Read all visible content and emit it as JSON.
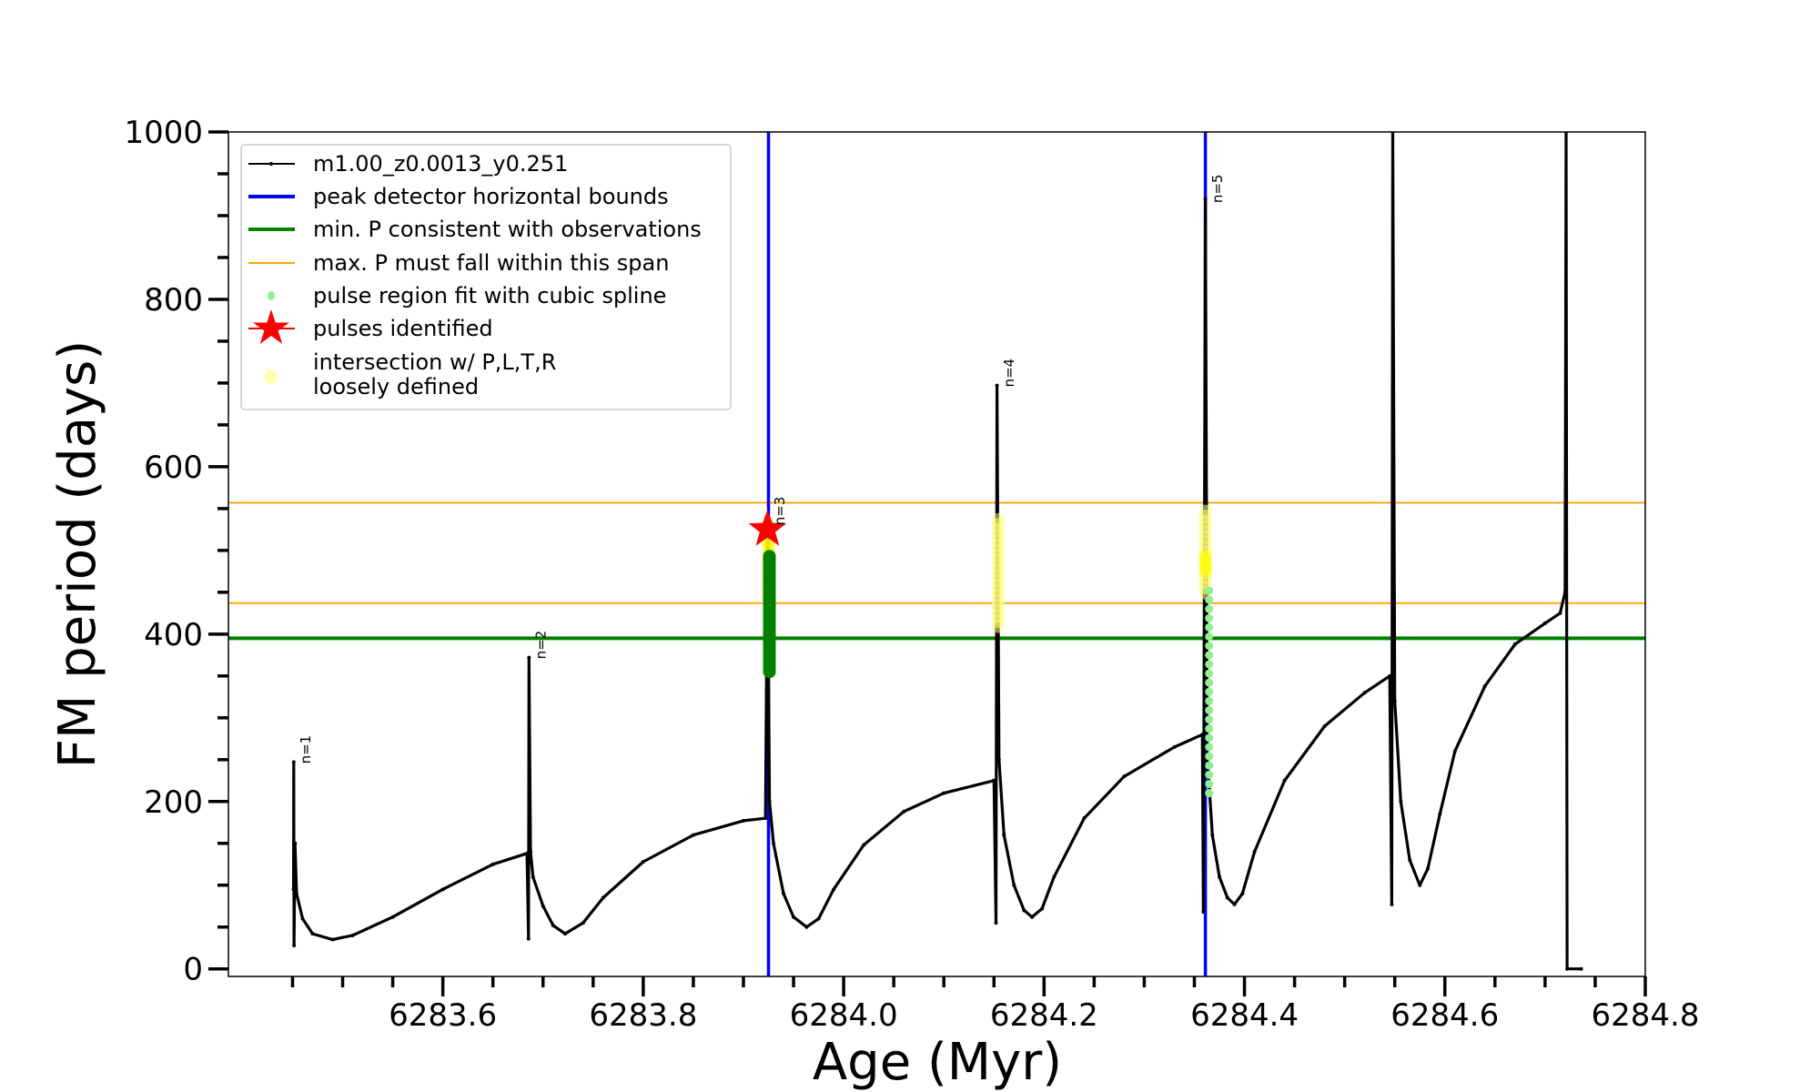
{
  "chart_data": {
    "type": "line",
    "title": "",
    "xlabel": "Age (Myr)",
    "ylabel": "FM period (days)",
    "xlim": [
      6283.386,
      6284.8
    ],
    "ylim": [
      -9,
      1000
    ],
    "xticks": [
      6283.6,
      6283.8,
      6284.0,
      6284.2,
      6284.4,
      6284.6,
      6284.8
    ],
    "xtick_labels": [
      "6283.6",
      "6283.8",
      "6284.0",
      "6284.2",
      "6284.4",
      "6284.6",
      "6284.8"
    ],
    "yticks": [
      0,
      200,
      400,
      600,
      800,
      1000
    ],
    "ytick_labels": [
      "0",
      "200",
      "400",
      "600",
      "800",
      "1000"
    ],
    "grid": false,
    "legend_position": "top-left",
    "legend": [
      {
        "label": "m1.00_z0.0013_y0.251",
        "kind": "line-marker",
        "color": "#000000"
      },
      {
        "label": "peak detector horizontal bounds",
        "kind": "line",
        "color": "#0000ff"
      },
      {
        "label": "min. P consistent with observations",
        "kind": "line",
        "color": "#008000"
      },
      {
        "label": "max. P must fall within this span",
        "kind": "thin-line",
        "color": "#ffa500"
      },
      {
        "label": "pulse region fit with cubic spline",
        "kind": "dot",
        "color": "#90ee90"
      },
      {
        "label": "pulses identified",
        "kind": "star",
        "color": "#ff0000"
      },
      {
        "label": "intersection w/ P,L,T,R",
        "label2": "loosely defined",
        "kind": "dot",
        "color": "#ffffb0"
      }
    ],
    "series": [
      {
        "name": "m1.00_z0.0013_y0.251",
        "color": "#000000",
        "points": [
          [
            6283.451,
            95
          ],
          [
            6283.4512,
            247
          ],
          [
            6283.4515,
            28
          ],
          [
            6283.4525,
            150
          ],
          [
            6283.454,
            90
          ],
          [
            6283.46,
            60
          ],
          [
            6283.47,
            42
          ],
          [
            6283.49,
            35
          ],
          [
            6283.51,
            40
          ],
          [
            6283.55,
            62
          ],
          [
            6283.6,
            95
          ],
          [
            6283.65,
            125
          ],
          [
            6283.684,
            138
          ],
          [
            6283.6855,
            36
          ],
          [
            6283.686,
            372
          ],
          [
            6283.6875,
            140
          ],
          [
            6283.69,
            110
          ],
          [
            6283.7,
            75
          ],
          [
            6283.71,
            52
          ],
          [
            6283.722,
            42
          ],
          [
            6283.74,
            55
          ],
          [
            6283.76,
            85
          ],
          [
            6283.8,
            128
          ],
          [
            6283.85,
            160
          ],
          [
            6283.9,
            177
          ],
          [
            6283.922,
            180
          ],
          [
            6283.924,
            520
          ],
          [
            6283.926,
            200
          ],
          [
            6283.93,
            150
          ],
          [
            6283.94,
            90
          ],
          [
            6283.95,
            62
          ],
          [
            6283.963,
            50
          ],
          [
            6283.975,
            60
          ],
          [
            6283.99,
            95
          ],
          [
            6284.02,
            148
          ],
          [
            6284.06,
            188
          ],
          [
            6284.1,
            210
          ],
          [
            6284.15,
            225
          ],
          [
            6284.152,
            55
          ],
          [
            6284.153,
            697
          ],
          [
            6284.155,
            250
          ],
          [
            6284.16,
            160
          ],
          [
            6284.17,
            100
          ],
          [
            6284.18,
            70
          ],
          [
            6284.188,
            62
          ],
          [
            6284.198,
            72
          ],
          [
            6284.21,
            110
          ],
          [
            6284.24,
            180
          ],
          [
            6284.28,
            230
          ],
          [
            6284.33,
            265
          ],
          [
            6284.358,
            280
          ],
          [
            6284.359,
            68
          ],
          [
            6284.361,
            920
          ],
          [
            6284.363,
            250
          ],
          [
            6284.368,
            160
          ],
          [
            6284.375,
            110
          ],
          [
            6284.383,
            85
          ],
          [
            6284.39,
            77
          ],
          [
            6284.398,
            90
          ],
          [
            6284.41,
            140
          ],
          [
            6284.44,
            225
          ],
          [
            6284.48,
            290
          ],
          [
            6284.52,
            330
          ],
          [
            6284.545,
            350
          ],
          [
            6284.547,
            77
          ],
          [
            6284.548,
            1000
          ],
          [
            6284.55,
            320
          ],
          [
            6284.556,
            200
          ],
          [
            6284.565,
            130
          ],
          [
            6284.575,
            100
          ],
          [
            6284.583,
            120
          ],
          [
            6284.595,
            185
          ],
          [
            6284.61,
            260
          ],
          [
            6284.64,
            338
          ],
          [
            6284.67,
            388
          ],
          [
            6284.7,
            413
          ],
          [
            6284.715,
            425
          ],
          [
            6284.72,
            450
          ],
          [
            6284.721,
            1000
          ],
          [
            6284.722,
            0
          ],
          [
            6284.736,
            0
          ]
        ]
      }
    ],
    "vlines": {
      "label": "peak detector horizontal bounds",
      "color": "#0000ff",
      "x": [
        6283.925,
        6284.361
      ]
    },
    "hlines": [
      {
        "label": "min. P consistent with observations",
        "color": "#008000",
        "y": 395
      },
      {
        "label": "max. P must fall within this span",
        "color": "#ffa500",
        "y": 557
      },
      {
        "label": "max. P must fall within this span",
        "color": "#ffa500",
        "y": 437
      }
    ],
    "pulse_fit_points": [
      {
        "x": 6283.925,
        "y_from": 355,
        "y_to": 495,
        "color": "#008000"
      },
      {
        "x": 6284.362,
        "y_from": 210,
        "y_to": 460,
        "color": "#90ee90"
      }
    ],
    "loose_intersections": [
      {
        "x": 6283.925,
        "y_from": 440,
        "y_to": 530,
        "color": "#ffff00"
      },
      {
        "x": 6284.154,
        "y_from": 410,
        "y_to": 540,
        "color": "#ffff80"
      },
      {
        "x": 6284.361,
        "y_from": 450,
        "y_to": 550,
        "color": "#ffff80"
      },
      {
        "x": 6284.361,
        "y_from": 475,
        "y_to": 495,
        "color": "#ffff00"
      }
    ],
    "pulses_identified": [
      {
        "x": 6283.924,
        "y": 525
      }
    ],
    "annotations": [
      {
        "text": "n=1",
        "x": 6283.455,
        "y": 245
      },
      {
        "text": "n=2",
        "x": 6283.69,
        "y": 370
      },
      {
        "text": "n=3",
        "x": 6283.928,
        "y": 530
      },
      {
        "text": "n=4",
        "x": 6284.157,
        "y": 695
      },
      {
        "text": "n=5",
        "x": 6284.365,
        "y": 915
      }
    ]
  }
}
